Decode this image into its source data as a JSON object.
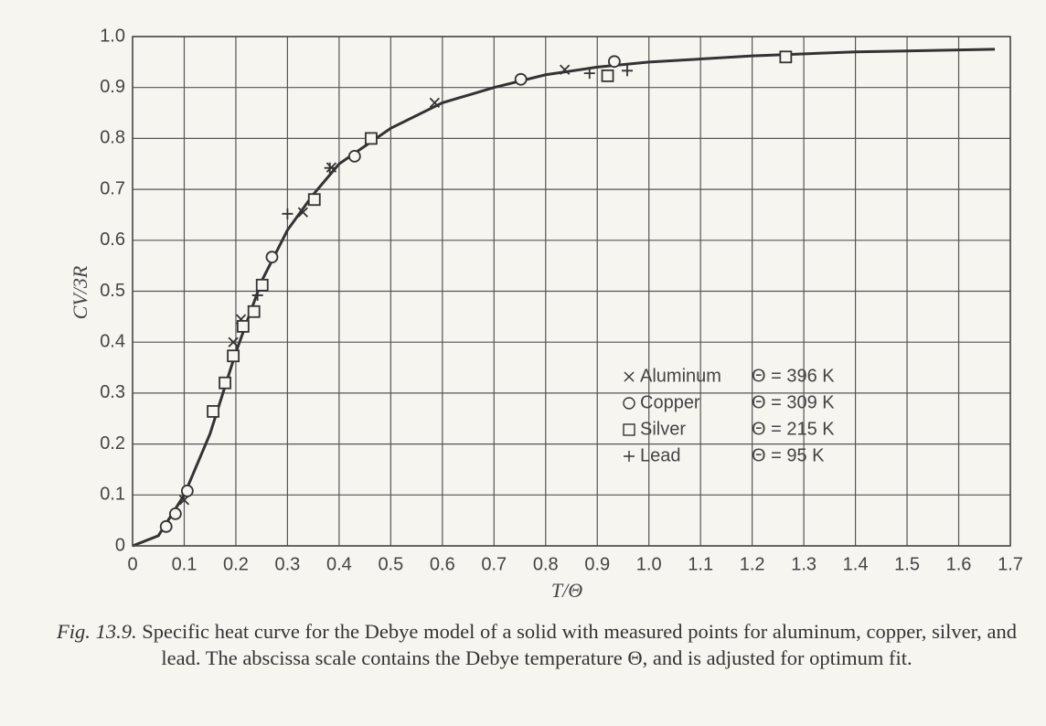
{
  "chart_data": {
    "type": "scatter",
    "xlabel": "T/Θ",
    "ylabel": "CV/3R",
    "xlim": [
      0,
      1.7
    ],
    "ylim": [
      0,
      1.0
    ],
    "xticks": [
      0,
      0.1,
      0.2,
      0.3,
      0.4,
      0.5,
      0.6,
      0.7,
      0.8,
      0.9,
      {
        "value": 1.0,
        "label": "1.0"
      },
      1.1,
      1.2,
      1.3,
      1.4,
      1.5,
      1.6,
      1.7
    ],
    "yticks": [
      0,
      0.1,
      0.2,
      0.3,
      0.4,
      0.5,
      0.6,
      0.7,
      0.8,
      0.9,
      {
        "value": 1.0,
        "label": "1.0"
      }
    ],
    "grid": true,
    "curve": {
      "color": "#333333",
      "x": [
        0,
        0.05,
        0.1,
        0.15,
        0.2,
        0.25,
        0.3,
        0.35,
        0.4,
        0.5,
        0.6,
        0.7,
        0.8,
        0.9,
        1.0,
        1.2,
        1.4,
        1.67
      ],
      "y": [
        0,
        0.02,
        0.1,
        0.22,
        0.38,
        0.52,
        0.62,
        0.69,
        0.75,
        0.82,
        0.87,
        0.9,
        0.925,
        0.94,
        0.95,
        0.962,
        0.97,
        0.975
      ]
    },
    "series": [
      {
        "name": "Aluminum",
        "theta_label": "Θ = 396  K",
        "marker": "x",
        "color": "#333333",
        "x": [
          0.1,
          0.195,
          0.21,
          0.33,
          0.385,
          0.585,
          0.837
        ],
        "values": [
          0.09,
          0.4,
          0.445,
          0.655,
          0.743,
          0.87,
          0.935
        ]
      },
      {
        "name": "Copper",
        "theta_label": "Θ = 309  K",
        "marker": "o",
        "color": "#333333",
        "x": [
          0.065,
          0.083,
          0.106,
          0.27,
          0.43,
          0.752,
          0.933
        ],
        "values": [
          0.038,
          0.063,
          0.108,
          0.567,
          0.765,
          0.916,
          0.951
        ]
      },
      {
        "name": "Silver",
        "theta_label": "Θ = 215  K",
        "marker": "s",
        "color": "#333333",
        "x": [
          0.156,
          0.179,
          0.195,
          0.214,
          0.235,
          0.251,
          0.352,
          0.462,
          0.92,
          1.265
        ],
        "values": [
          0.264,
          0.32,
          0.373,
          0.431,
          0.46,
          0.512,
          0.68,
          0.8,
          0.923,
          0.96
        ]
      },
      {
        "name": "Lead",
        "theta_label": "Θ =   95  K",
        "marker": "+",
        "color": "#333333",
        "x": [
          0.242,
          0.3,
          0.382,
          0.885,
          0.958
        ],
        "values": [
          0.492,
          0.652,
          0.742,
          0.928,
          0.933
        ]
      }
    ],
    "caption_label": "Fig. 13.9.",
    "caption": "Specific heat curve for the Debye model of a solid with measured points for aluminum, copper, silver, and lead. The abscissa scale contains the Debye temperature Θ, and is adjusted for optimum fit."
  }
}
